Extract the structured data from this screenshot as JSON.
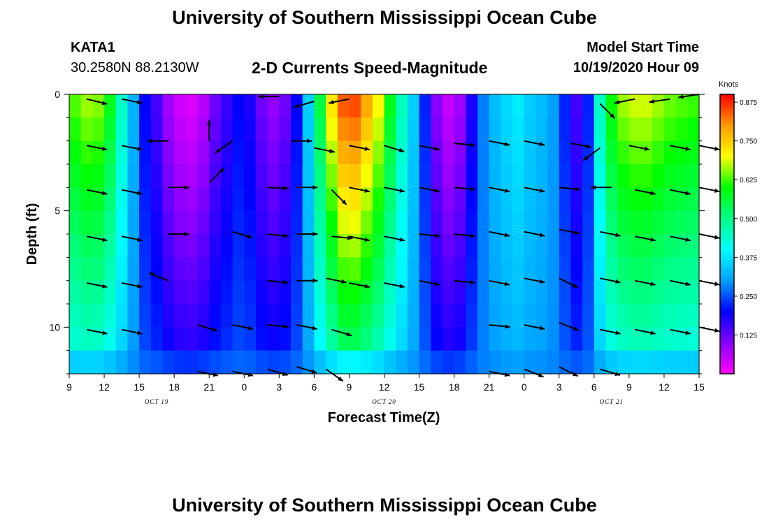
{
  "header": {
    "title": "University of Southern Mississippi Ocean Cube",
    "station": "KATA1",
    "coords": "30.2580N 88.2130W",
    "subtitle": "2-D Currents Speed-Magnitude",
    "start_label": "Model Start Time",
    "start_value": "10/19/2020 Hour 09"
  },
  "footer": {
    "title": "University of Southern Mississippi Ocean Cube"
  },
  "colors": {
    "scale": [
      "#ff00ff",
      "#8800ff",
      "#0000ff",
      "#00a0ff",
      "#00ffff",
      "#00ff88",
      "#00ff00",
      "#ffff00",
      "#ff9900",
      "#ff0000"
    ]
  },
  "chart_data": {
    "type": "heatmap",
    "title": "2-D Currents Speed-Magnitude",
    "xlabel": "Forecast Time(Z)",
    "ylabel": "Depth (ft)",
    "xlim": [
      9,
      63
    ],
    "ylim": [
      0,
      12
    ],
    "x_ticks": [
      {
        "v": 9,
        "label": "9"
      },
      {
        "v": 12,
        "label": "12"
      },
      {
        "v": 15,
        "label": "15"
      },
      {
        "v": 18,
        "label": "18"
      },
      {
        "v": 21,
        "label": "21"
      },
      {
        "v": 24,
        "label": "0"
      },
      {
        "v": 27,
        "label": "3"
      },
      {
        "v": 30,
        "label": "6"
      },
      {
        "v": 33,
        "label": "9"
      },
      {
        "v": 36,
        "label": "12"
      },
      {
        "v": 39,
        "label": "15"
      },
      {
        "v": 42,
        "label": "18"
      },
      {
        "v": 45,
        "label": "21"
      },
      {
        "v": 48,
        "label": "0"
      },
      {
        "v": 51,
        "label": "3"
      },
      {
        "v": 54,
        "label": "6"
      },
      {
        "v": 57,
        "label": "9"
      },
      {
        "v": 60,
        "label": "12"
      },
      {
        "v": 63,
        "label": "15"
      }
    ],
    "date_labels": [
      {
        "v": 16.5,
        "label": "OCT 19"
      },
      {
        "v": 36,
        "label": "OCT 20"
      },
      {
        "v": 55.5,
        "label": "OCT 21"
      }
    ],
    "y_ticks": [
      {
        "v": 0,
        "label": "0"
      },
      {
        "v": 5,
        "label": "5"
      },
      {
        "v": 10,
        "label": "10"
      }
    ],
    "colorbar": {
      "unit": "Knots",
      "min": 0.0,
      "max": 0.9,
      "ticks": [
        "0.875",
        "0.750",
        "0.625",
        "0.500",
        "0.375",
        "0.250",
        "0.125"
      ],
      "tick_values": [
        0.875,
        0.75,
        0.625,
        0.5,
        0.375,
        0.25,
        0.125
      ]
    },
    "hours": [
      9,
      10,
      11,
      12,
      13,
      14,
      15,
      16,
      17,
      18,
      19,
      20,
      21,
      22,
      23,
      24,
      25,
      26,
      27,
      28,
      29,
      30,
      31,
      32,
      33,
      34,
      35,
      36,
      37,
      38,
      39,
      40,
      41,
      42,
      43,
      44,
      45,
      46,
      47,
      48,
      49,
      50,
      51,
      52,
      53,
      54,
      55,
      56,
      57,
      58,
      59,
      60,
      61,
      62
    ],
    "surface_speed_knots": [
      0.63,
      0.66,
      0.65,
      0.58,
      0.45,
      0.32,
      0.2,
      0.15,
      0.08,
      0.04,
      0.03,
      0.06,
      0.12,
      0.16,
      0.2,
      0.18,
      0.12,
      0.09,
      0.12,
      0.2,
      0.35,
      0.55,
      0.72,
      0.84,
      0.85,
      0.78,
      0.7,
      0.58,
      0.46,
      0.35,
      0.22,
      0.1,
      0.05,
      0.08,
      0.18,
      0.28,
      0.33,
      0.36,
      0.38,
      0.35,
      0.33,
      0.3,
      0.22,
      0.15,
      0.22,
      0.45,
      0.6,
      0.66,
      0.68,
      0.68,
      0.66,
      0.64,
      0.63,
      0.62
    ],
    "arrows": [
      {
        "t": 10.5,
        "d": 0.2,
        "u": 1.0,
        "v": 0.25
      },
      {
        "t": 13.5,
        "d": 0.2,
        "u": 1.0,
        "v": 0.2
      },
      {
        "t": 27,
        "d": 0.1,
        "u": -1.0,
        "v": 0.0
      },
      {
        "t": 30,
        "d": 0.3,
        "u": -1.0,
        "v": 0.3
      },
      {
        "t": 33,
        "d": 0.2,
        "u": -1.0,
        "v": 0.2
      },
      {
        "t": 54.5,
        "d": 0.4,
        "u": 0.7,
        "v": 0.7
      },
      {
        "t": 57.5,
        "d": 0.2,
        "u": -1.0,
        "v": 0.2
      },
      {
        "t": 60.5,
        "d": 0.2,
        "u": -1.0,
        "v": 0.15
      },
      {
        "t": 63,
        "d": 0.0,
        "u": -1.0,
        "v": 0.15
      },
      {
        "t": 21,
        "d": 2.0,
        "u": 0.0,
        "v": -1.0
      },
      {
        "t": 23,
        "d": 2.0,
        "u": -1.0,
        "v": 0.7
      },
      {
        "t": 10.5,
        "d": 2.2,
        "u": 1.0,
        "v": 0.2
      },
      {
        "t": 13.5,
        "d": 2.2,
        "u": 1.0,
        "v": 0.2
      },
      {
        "t": 17.5,
        "d": 2.0,
        "u": -1.0,
        "v": 0.0
      },
      {
        "t": 28,
        "d": 2.0,
        "u": 1.0,
        "v": 0.0
      },
      {
        "t": 30,
        "d": 2.3,
        "u": 1.0,
        "v": 0.2
      },
      {
        "t": 33,
        "d": 2.2,
        "u": 1.0,
        "v": 0.2
      },
      {
        "t": 36,
        "d": 2.2,
        "u": 1.0,
        "v": 0.3
      },
      {
        "t": 39,
        "d": 2.2,
        "u": 1.0,
        "v": 0.2
      },
      {
        "t": 42,
        "d": 2.1,
        "u": 1.0,
        "v": 0.1
      },
      {
        "t": 45,
        "d": 2.0,
        "u": 1.0,
        "v": 0.2
      },
      {
        "t": 48,
        "d": 2.0,
        "u": 1.0,
        "v": 0.2
      },
      {
        "t": 52,
        "d": 2.1,
        "u": 1.0,
        "v": 0.2
      },
      {
        "t": 54.5,
        "d": 2.3,
        "u": -0.8,
        "v": 0.6
      },
      {
        "t": 57,
        "d": 2.2,
        "u": 1.0,
        "v": 0.2
      },
      {
        "t": 60.5,
        "d": 2.2,
        "u": 1.0,
        "v": 0.2
      },
      {
        "t": 63,
        "d": 2.2,
        "u": 1.0,
        "v": 0.2
      },
      {
        "t": 21,
        "d": 3.8,
        "u": 0.7,
        "v": -0.7
      },
      {
        "t": 31.5,
        "d": 4.1,
        "u": 0.7,
        "v": 0.7
      },
      {
        "t": 10.5,
        "d": 4.1,
        "u": 1.0,
        "v": 0.2
      },
      {
        "t": 13.5,
        "d": 4.1,
        "u": 1.0,
        "v": 0.2
      },
      {
        "t": 17.5,
        "d": 4.0,
        "u": 1.0,
        "v": 0.0
      },
      {
        "t": 26,
        "d": 4.0,
        "u": 1.0,
        "v": 0.05
      },
      {
        "t": 28.5,
        "d": 4.0,
        "u": 1.0,
        "v": 0.0
      },
      {
        "t": 33,
        "d": 4.0,
        "u": 1.0,
        "v": 0.2
      },
      {
        "t": 36,
        "d": 4.0,
        "u": 1.0,
        "v": 0.2
      },
      {
        "t": 39,
        "d": 4.0,
        "u": 1.0,
        "v": 0.2
      },
      {
        "t": 42,
        "d": 4.0,
        "u": 1.0,
        "v": 0.1
      },
      {
        "t": 45,
        "d": 4.0,
        "u": 1.0,
        "v": 0.2
      },
      {
        "t": 48,
        "d": 4.0,
        "u": 1.0,
        "v": 0.2
      },
      {
        "t": 51,
        "d": 4.0,
        "u": 1.0,
        "v": 0.1
      },
      {
        "t": 55.5,
        "d": 4.0,
        "u": -1.0,
        "v": 0.0
      },
      {
        "t": 57.5,
        "d": 4.1,
        "u": 1.0,
        "v": 0.2
      },
      {
        "t": 60.5,
        "d": 4.1,
        "u": 1.0,
        "v": 0.2
      },
      {
        "t": 63,
        "d": 4.0,
        "u": 1.0,
        "v": 0.2
      },
      {
        "t": 10.5,
        "d": 6.1,
        "u": 1.0,
        "v": 0.2
      },
      {
        "t": 13.5,
        "d": 6.1,
        "u": 1.0,
        "v": 0.2
      },
      {
        "t": 17.5,
        "d": 6.0,
        "u": 1.0,
        "v": 0.0
      },
      {
        "t": 23,
        "d": 5.9,
        "u": 1.0,
        "v": 0.3
      },
      {
        "t": 26,
        "d": 6.0,
        "u": 1.0,
        "v": 0.1
      },
      {
        "t": 28.5,
        "d": 6.0,
        "u": 1.0,
        "v": 0.0
      },
      {
        "t": 31.5,
        "d": 6.1,
        "u": 1.0,
        "v": 0.1
      },
      {
        "t": 33,
        "d": 6.1,
        "u": 1.0,
        "v": 0.2
      },
      {
        "t": 36,
        "d": 6.1,
        "u": 1.0,
        "v": 0.2
      },
      {
        "t": 39,
        "d": 6.0,
        "u": 1.0,
        "v": 0.1
      },
      {
        "t": 42,
        "d": 6.0,
        "u": 1.0,
        "v": 0.1
      },
      {
        "t": 45,
        "d": 5.9,
        "u": 1.0,
        "v": 0.2
      },
      {
        "t": 48,
        "d": 5.9,
        "u": 1.0,
        "v": 0.2
      },
      {
        "t": 51,
        "d": 5.8,
        "u": 1.0,
        "v": 0.2
      },
      {
        "t": 54.5,
        "d": 5.9,
        "u": 1.0,
        "v": 0.2
      },
      {
        "t": 57.5,
        "d": 6.1,
        "u": 1.0,
        "v": 0.2
      },
      {
        "t": 60.5,
        "d": 6.1,
        "u": 1.0,
        "v": 0.2
      },
      {
        "t": 63,
        "d": 6.0,
        "u": 1.0,
        "v": 0.2
      },
      {
        "t": 10.5,
        "d": 8.1,
        "u": 1.0,
        "v": 0.2
      },
      {
        "t": 13.5,
        "d": 8.1,
        "u": 1.0,
        "v": 0.2
      },
      {
        "t": 17.5,
        "d": 8.0,
        "u": -1.0,
        "v": -0.4
      },
      {
        "t": 26,
        "d": 8.0,
        "u": 1.0,
        "v": 0.1
      },
      {
        "t": 28.5,
        "d": 8.0,
        "u": 1.0,
        "v": 0.0
      },
      {
        "t": 31,
        "d": 7.9,
        "u": 1.0,
        "v": 0.2
      },
      {
        "t": 33,
        "d": 8.1,
        "u": 1.0,
        "v": 0.2
      },
      {
        "t": 36,
        "d": 8.1,
        "u": 1.0,
        "v": 0.2
      },
      {
        "t": 39,
        "d": 8.0,
        "u": 1.0,
        "v": 0.2
      },
      {
        "t": 42,
        "d": 8.0,
        "u": 1.0,
        "v": 0.1
      },
      {
        "t": 45,
        "d": 8.0,
        "u": 1.0,
        "v": 0.2
      },
      {
        "t": 48,
        "d": 7.9,
        "u": 1.0,
        "v": 0.2
      },
      {
        "t": 51,
        "d": 7.9,
        "u": 1.0,
        "v": 0.5
      },
      {
        "t": 54.5,
        "d": 7.9,
        "u": 1.0,
        "v": 0.2
      },
      {
        "t": 57.5,
        "d": 8.0,
        "u": 1.0,
        "v": 0.2
      },
      {
        "t": 60.5,
        "d": 8.0,
        "u": 1.0,
        "v": 0.2
      },
      {
        "t": 63,
        "d": 8.0,
        "u": 1.0,
        "v": 0.2
      },
      {
        "t": 10.5,
        "d": 10.1,
        "u": 1.0,
        "v": 0.2
      },
      {
        "t": 13.5,
        "d": 10.1,
        "u": 1.0,
        "v": 0.2
      },
      {
        "t": 20,
        "d": 9.9,
        "u": 1.0,
        "v": 0.3
      },
      {
        "t": 23,
        "d": 9.9,
        "u": 1.0,
        "v": 0.2
      },
      {
        "t": 26,
        "d": 9.9,
        "u": 1.0,
        "v": 0.1
      },
      {
        "t": 28.5,
        "d": 9.9,
        "u": 1.0,
        "v": 0.2
      },
      {
        "t": 31.5,
        "d": 10.1,
        "u": 1.0,
        "v": 0.3
      },
      {
        "t": 45,
        "d": 9.9,
        "u": 1.0,
        "v": 0.1
      },
      {
        "t": 48,
        "d": 9.9,
        "u": 1.0,
        "v": 0.2
      },
      {
        "t": 51,
        "d": 9.8,
        "u": 1.0,
        "v": 0.4
      },
      {
        "t": 54.5,
        "d": 10.1,
        "u": 1.0,
        "v": 0.2
      },
      {
        "t": 57.5,
        "d": 10.1,
        "u": 1.0,
        "v": 0.2
      },
      {
        "t": 60.5,
        "d": 10.1,
        "u": 1.0,
        "v": 0.2
      },
      {
        "t": 63,
        "d": 10.0,
        "u": 1.0,
        "v": 0.2
      },
      {
        "t": 20,
        "d": 11.9,
        "u": 1.0,
        "v": 0.2
      },
      {
        "t": 23,
        "d": 11.9,
        "u": 1.0,
        "v": 0.2
      },
      {
        "t": 26,
        "d": 11.8,
        "u": 1.0,
        "v": 0.3
      },
      {
        "t": 28.5,
        "d": 11.7,
        "u": 1.0,
        "v": 0.3
      },
      {
        "t": 31,
        "d": 11.8,
        "u": 1.0,
        "v": 0.7
      },
      {
        "t": 45,
        "d": 11.9,
        "u": 1.0,
        "v": 0.2
      },
      {
        "t": 48,
        "d": 11.8,
        "u": 1.0,
        "v": 0.4
      },
      {
        "t": 51,
        "d": 11.7,
        "u": 1.0,
        "v": 0.5
      },
      {
        "t": 54.5,
        "d": 11.8,
        "u": 1.0,
        "v": 0.3
      }
    ]
  }
}
